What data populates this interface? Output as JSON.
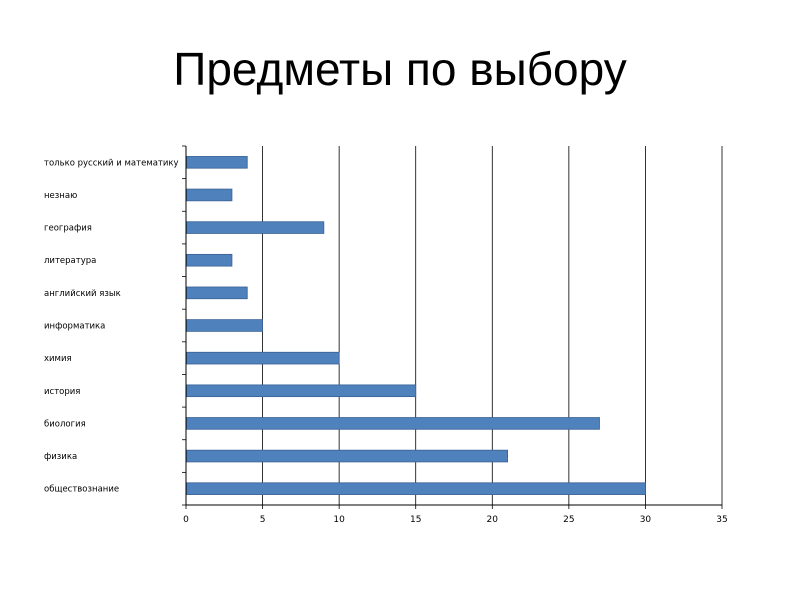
{
  "slide": {
    "title": "Предметы по выбору"
  },
  "chart_data": {
    "type": "bar",
    "orientation": "horizontal",
    "categories": [
      "только русский и математику",
      "незнаю",
      "география",
      "литература",
      "английский язык",
      "информатика",
      "химия",
      "история",
      "биология",
      "физика",
      "обществознание"
    ],
    "values": [
      4,
      3,
      9,
      3,
      4,
      5,
      10,
      15,
      27,
      21,
      30
    ],
    "xlim": [
      0,
      35
    ],
    "xticks": [
      "0",
      "5",
      "10",
      "15",
      "20",
      "25",
      "30",
      "35"
    ],
    "grid": "vertical",
    "legend": "none",
    "colors": {
      "bar": "#4f81bd",
      "bar_edge": "#3a6294",
      "grid": "#000000"
    }
  }
}
